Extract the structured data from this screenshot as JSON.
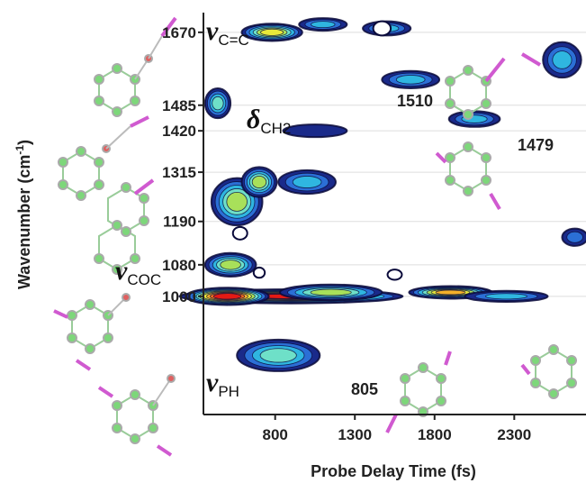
{
  "chart_data": {
    "type": "heatmap",
    "title": "",
    "xlabel": "Probe Delay Time (fs)",
    "ylabel": "Wavenumber (cm-1)",
    "xlim": [
      350,
      2750
    ],
    "ylim": [
      700,
      1720
    ],
    "x_ticks": [
      "800",
      "1300",
      "1800",
      "2300"
    ],
    "x_tick_values": [
      800,
      1300,
      1800,
      2300
    ],
    "y_ticks": [
      "1670",
      "1485",
      "1420",
      "1315",
      "1190",
      "1080",
      "1000"
    ],
    "y_tick_values": [
      1670,
      1485,
      1420,
      1315,
      1190,
      1080,
      1000
    ],
    "grid": "horizontal",
    "colormap": [
      "#1a2a8a",
      "#2b6fd6",
      "#2fb6e0",
      "#6ee0c8",
      "#a8e05a",
      "#e8e83a",
      "#f4b02a",
      "#ee6a1c",
      "#e31a14"
    ],
    "hotspots": [
      {
        "x": 900,
        "y": 1000,
        "intensity": 1.0,
        "sx": 700,
        "sy": 18
      },
      {
        "x": 500,
        "y": 1000,
        "intensity": 0.95,
        "sx": 260,
        "sy": 22
      },
      {
        "x": 1150,
        "y": 1010,
        "intensity": 0.6,
        "sx": 320,
        "sy": 20
      },
      {
        "x": 1900,
        "y": 1010,
        "intensity": 0.75,
        "sx": 260,
        "sy": 16
      },
      {
        "x": 2250,
        "y": 1000,
        "intensity": 0.35,
        "sx": 260,
        "sy": 14
      },
      {
        "x": 780,
        "y": 1670,
        "intensity": 0.62,
        "sx": 190,
        "sy": 22
      },
      {
        "x": 1500,
        "y": 1680,
        "intensity": 0.38,
        "sx": 150,
        "sy": 18
      },
      {
        "x": 1100,
        "y": 1690,
        "intensity": 0.28,
        "sx": 150,
        "sy": 16
      },
      {
        "x": 560,
        "y": 1240,
        "intensity": 0.55,
        "sx": 160,
        "sy": 60
      },
      {
        "x": 700,
        "y": 1290,
        "intensity": 0.52,
        "sx": 110,
        "sy": 38
      },
      {
        "x": 1000,
        "y": 1290,
        "intensity": 0.3,
        "sx": 180,
        "sy": 30
      },
      {
        "x": 520,
        "y": 1080,
        "intensity": 0.5,
        "sx": 160,
        "sy": 30
      },
      {
        "x": 820,
        "y": 850,
        "intensity": 0.45,
        "sx": 260,
        "sy": 40
      },
      {
        "x": 440,
        "y": 1490,
        "intensity": 0.42,
        "sx": 80,
        "sy": 38
      },
      {
        "x": 1650,
        "y": 1550,
        "intensity": 0.35,
        "sx": 180,
        "sy": 22
      },
      {
        "x": 2050,
        "y": 1450,
        "intensity": 0.32,
        "sx": 160,
        "sy": 20
      },
      {
        "x": 1050,
        "y": 1420,
        "intensity": 0.16,
        "sx": 200,
        "sy": 16
      },
      {
        "x": 2600,
        "y": 1600,
        "intensity": 0.38,
        "sx": 120,
        "sy": 45
      },
      {
        "x": 2680,
        "y": 1150,
        "intensity": 0.25,
        "sx": 80,
        "sy": 22
      }
    ],
    "holes": [
      {
        "x": 1470,
        "y": 1680,
        "rx": 55,
        "ry": 18
      },
      {
        "x": 580,
        "y": 1160,
        "rx": 45,
        "ry": 16
      },
      {
        "x": 700,
        "y": 1060,
        "rx": 35,
        "ry": 13
      },
      {
        "x": 1550,
        "y": 1055,
        "rx": 45,
        "ry": 13
      }
    ],
    "annotations": {
      "nu_cc": "ν",
      "nu_cc_sub": "C=C",
      "delta_ch2": "δ",
      "delta_ch2_sub": "CH2",
      "nu_coc": "ν",
      "nu_coc_sub": "COC",
      "nu_ph": "ν",
      "nu_ph_sub": "PH",
      "label_1510": "1510",
      "label_1479": "1479",
      "label_805": "805"
    }
  }
}
